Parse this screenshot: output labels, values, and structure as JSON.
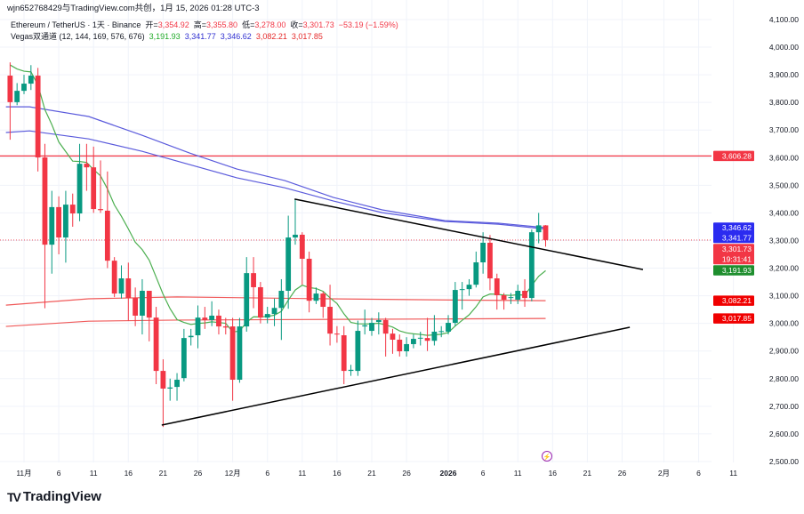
{
  "header": {
    "title": "wjn652768429与TradingView.com共创，1月 15, 2026 01:28 UTC-3",
    "symbol": "Ethereum / TetherUS · 1天 · Binance",
    "open_label": "开=",
    "open": "3,354.92",
    "high_label": "高=",
    "high": "3,355.80",
    "low_label": "低=",
    "low": "3,278.00",
    "close_label": "收=",
    "close": "3,301.73",
    "change": "−53.19 (−1.59%)",
    "indicator_name": "Vegas双通道 (12, 144, 169, 576, 676)",
    "indicator_values": [
      "3,191.93",
      "3,341.77",
      "3,346.62",
      "3,082.21",
      "3,017.85"
    ]
  },
  "colors": {
    "up": "#089981",
    "down": "#f23645",
    "ema_fast": "#4caf50",
    "ema_mid": "#5b5bdc",
    "ema_slow": "#f05a5a",
    "level": "#f23645",
    "trend": "#000000"
  },
  "footer": {
    "brand": "TradingView"
  },
  "chart_data": {
    "type": "candlestick",
    "y_range": [
      2500,
      4100
    ],
    "y_ticks": [
      "2,500.00",
      "2,600.00",
      "2,700.00",
      "2,800.00",
      "2,900.00",
      "3,000.00",
      "3,100.00",
      "3,200.00",
      "3,300.00",
      "3,400.00",
      "3,500.00",
      "3,600.00",
      "3,700.00",
      "3,800.00",
      "3,900.00",
      "4,000.00",
      "4,100.00"
    ],
    "x_ticks": [
      {
        "label": "11月",
        "day": 0
      },
      {
        "label": "6",
        "day": 5
      },
      {
        "label": "11",
        "day": 10
      },
      {
        "label": "16",
        "day": 15
      },
      {
        "label": "21",
        "day": 20
      },
      {
        "label": "26",
        "day": 25
      },
      {
        "label": "12月",
        "day": 30
      },
      {
        "label": "6",
        "day": 35
      },
      {
        "label": "11",
        "day": 40
      },
      {
        "label": "16",
        "day": 45
      },
      {
        "label": "21",
        "day": 50
      },
      {
        "label": "26",
        "day": 55
      },
      {
        "label": "2026",
        "day": 61,
        "bold": true
      },
      {
        "label": "6",
        "day": 66
      },
      {
        "label": "11",
        "day": 71
      },
      {
        "label": "16",
        "day": 76
      },
      {
        "label": "21",
        "day": 81
      },
      {
        "label": "26",
        "day": 86
      },
      {
        "label": "2月",
        "day": 92
      },
      {
        "label": "6",
        "day": 97
      },
      {
        "label": "11",
        "day": 102
      }
    ],
    "first_candle_day": -2,
    "ohlc": [
      [
        3897,
        3945,
        3665,
        3801
      ],
      [
        3801,
        3870,
        3790,
        3842
      ],
      [
        3842,
        3900,
        3830,
        3868
      ],
      [
        3868,
        3935,
        3845,
        3897
      ],
      [
        3897,
        3925,
        3550,
        3601
      ],
      [
        3601,
        3650,
        3055,
        3285
      ],
      [
        3285,
        3480,
        3180,
        3421
      ],
      [
        3421,
        3460,
        3250,
        3311
      ],
      [
        3311,
        3480,
        3220,
        3430
      ],
      [
        3430,
        3470,
        3350,
        3398
      ],
      [
        3398,
        3650,
        3370,
        3578
      ],
      [
        3578,
        3650,
        3480,
        3565
      ],
      [
        3565,
        3640,
        3400,
        3414
      ],
      [
        3414,
        3590,
        3400,
        3410
      ],
      [
        3408,
        3550,
        3200,
        3227
      ],
      [
        3227,
        3240,
        3095,
        3108
      ],
      [
        3108,
        3210,
        3090,
        3163
      ],
      [
        3163,
        3220,
        3010,
        3092
      ],
      [
        3092,
        3130,
        2990,
        3028
      ],
      [
        3028,
        3160,
        2960,
        3118
      ],
      [
        3118,
        3118,
        2935,
        3021
      ],
      [
        3021,
        3060,
        2780,
        2828
      ],
      [
        2828,
        2870,
        2625,
        2764
      ],
      [
        2764,
        2800,
        2720,
        2768
      ],
      [
        2770,
        2820,
        2720,
        2796
      ],
      [
        2802,
        2980,
        2790,
        2947
      ],
      [
        2950,
        2980,
        2920,
        2955
      ],
      [
        2957,
        3065,
        2910,
        3021
      ],
      [
        3021,
        3060,
        2980,
        3012
      ],
      [
        3012,
        3080,
        2990,
        3028
      ],
      [
        3028,
        3050,
        2960,
        2989
      ],
      [
        2989,
        3020,
        2960,
        2985
      ],
      [
        2989,
        3020,
        2720,
        2796
      ],
      [
        2796,
        3020,
        2785,
        2989
      ],
      [
        2989,
        3240,
        2970,
        3182
      ],
      [
        3182,
        3240,
        3055,
        3131
      ],
      [
        3131,
        3150,
        3000,
        3021
      ],
      [
        3021,
        3060,
        3000,
        3034
      ],
      [
        3034,
        3090,
        2990,
        3056
      ],
      [
        3056,
        3160,
        2940,
        3118
      ],
      [
        3118,
        3390,
        3053,
        3311
      ],
      [
        3311,
        3450,
        3285,
        3321
      ],
      [
        3321,
        3330,
        3140,
        3234
      ],
      [
        3234,
        3260,
        3040,
        3082
      ],
      [
        3082,
        3130,
        3070,
        3108
      ],
      [
        3108,
        3115,
        3020,
        3060
      ],
      [
        3060,
        3140,
        2920,
        2963
      ],
      [
        2963,
        2990,
        2930,
        2960
      ],
      [
        2957,
        2990,
        2780,
        2828
      ],
      [
        2828,
        2850,
        2810,
        2832
      ],
      [
        2828,
        3010,
        2810,
        2973
      ],
      [
        2989,
        3050,
        2960,
        2993
      ],
      [
        2973,
        3020,
        2955,
        3002
      ],
      [
        3005,
        3040,
        2960,
        3012
      ],
      [
        3012,
        3020,
        2880,
        2963
      ],
      [
        2963,
        2980,
        2890,
        2941
      ],
      [
        2941,
        2960,
        2880,
        2899
      ],
      [
        2899,
        2950,
        2880,
        2925
      ],
      [
        2925,
        2960,
        2910,
        2944
      ],
      [
        2946,
        2970,
        2920,
        2948
      ],
      [
        2947,
        3020,
        2900,
        2937
      ],
      [
        2937,
        3030,
        2920,
        2970
      ],
      [
        2970,
        2990,
        2950,
        2972
      ],
      [
        2970,
        3030,
        2960,
        3002
      ],
      [
        3002,
        3150,
        2990,
        3121
      ],
      [
        3121,
        3150,
        3050,
        3124
      ],
      [
        3124,
        3160,
        3100,
        3140
      ],
      [
        3140,
        3260,
        3130,
        3221
      ],
      [
        3221,
        3330,
        3180,
        3292
      ],
      [
        3292,
        3320,
        3120,
        3163
      ],
      [
        3163,
        3180,
        3050,
        3102
      ],
      [
        3102,
        3110,
        3050,
        3086
      ],
      [
        3092,
        3110,
        3070,
        3095
      ],
      [
        3086,
        3140,
        3070,
        3118
      ],
      [
        3118,
        3160,
        3060,
        3092
      ],
      [
        3092,
        3340,
        3080,
        3330
      ],
      [
        3330,
        3400,
        3290,
        3355
      ],
      [
        3354.92,
        3355.8,
        3278,
        3301.73
      ]
    ],
    "ema12_seed": 3960,
    "ema_lines": [
      {
        "name": "EMA144",
        "color": "#5b5bdc",
        "points": [
          [
            -2.6,
            3784
          ],
          [
            0.8,
            3784
          ],
          [
            9.3,
            3749
          ],
          [
            17,
            3681
          ],
          [
            23.8,
            3617
          ],
          [
            30.6,
            3559
          ],
          [
            37.5,
            3517
          ],
          [
            44.5,
            3456
          ],
          [
            51.5,
            3411
          ],
          [
            60.5,
            3372
          ],
          [
            68.2,
            3363
          ],
          [
            75,
            3346.62
          ]
        ]
      },
      {
        "name": "EMA169",
        "color": "#5b5bdc",
        "points": [
          [
            -2.6,
            3691
          ],
          [
            0.8,
            3697
          ],
          [
            9.3,
            3668
          ],
          [
            17,
            3623
          ],
          [
            23.8,
            3575
          ],
          [
            30.6,
            3527
          ],
          [
            37.5,
            3491
          ],
          [
            44.5,
            3443
          ],
          [
            51.5,
            3401
          ],
          [
            60.5,
            3369
          ],
          [
            68.2,
            3359
          ],
          [
            75,
            3341.77
          ]
        ]
      },
      {
        "name": "EMA576",
        "color": "#f05a5a",
        "points": [
          [
            -2.6,
            3066
          ],
          [
            9.3,
            3089
          ],
          [
            22,
            3096
          ],
          [
            40,
            3090
          ],
          [
            60,
            3085
          ],
          [
            75,
            3082.21
          ]
        ]
      },
      {
        "name": "EMA676",
        "color": "#f05a5a",
        "points": [
          [
            -2.6,
            2989
          ],
          [
            9.3,
            3008
          ],
          [
            22,
            3012
          ],
          [
            40,
            3014
          ],
          [
            60,
            3016
          ],
          [
            75,
            3017.85
          ]
        ]
      }
    ],
    "horizontal_level": 3606.28,
    "trendlines": [
      {
        "name": "upper-trendline",
        "from": [
          38.9,
          3450
        ],
        "to": [
          89,
          3195
        ]
      },
      {
        "name": "lower-trendline",
        "from": [
          19.8,
          2632
        ],
        "to": [
          87.1,
          2986
        ]
      }
    ],
    "price_labels": [
      {
        "text": "3,606.28",
        "value": 3606.28,
        "color": "#f23645"
      },
      {
        "text": "3,346.62",
        "value": 3346.62,
        "color": "#2b2bf0",
        "sub": "3,341.77"
      },
      {
        "text": "3,301.73",
        "value": 3301.73,
        "color": "#f23645",
        "sub": "19:31:41"
      },
      {
        "text": "3,191.93",
        "value": 3191.93,
        "color": "#1e8e2e"
      },
      {
        "text": "3,082.21",
        "value": 3082.21,
        "color": "#f00000"
      },
      {
        "text": "3,017.85",
        "value": 3017.85,
        "color": "#f00000"
      }
    ]
  }
}
